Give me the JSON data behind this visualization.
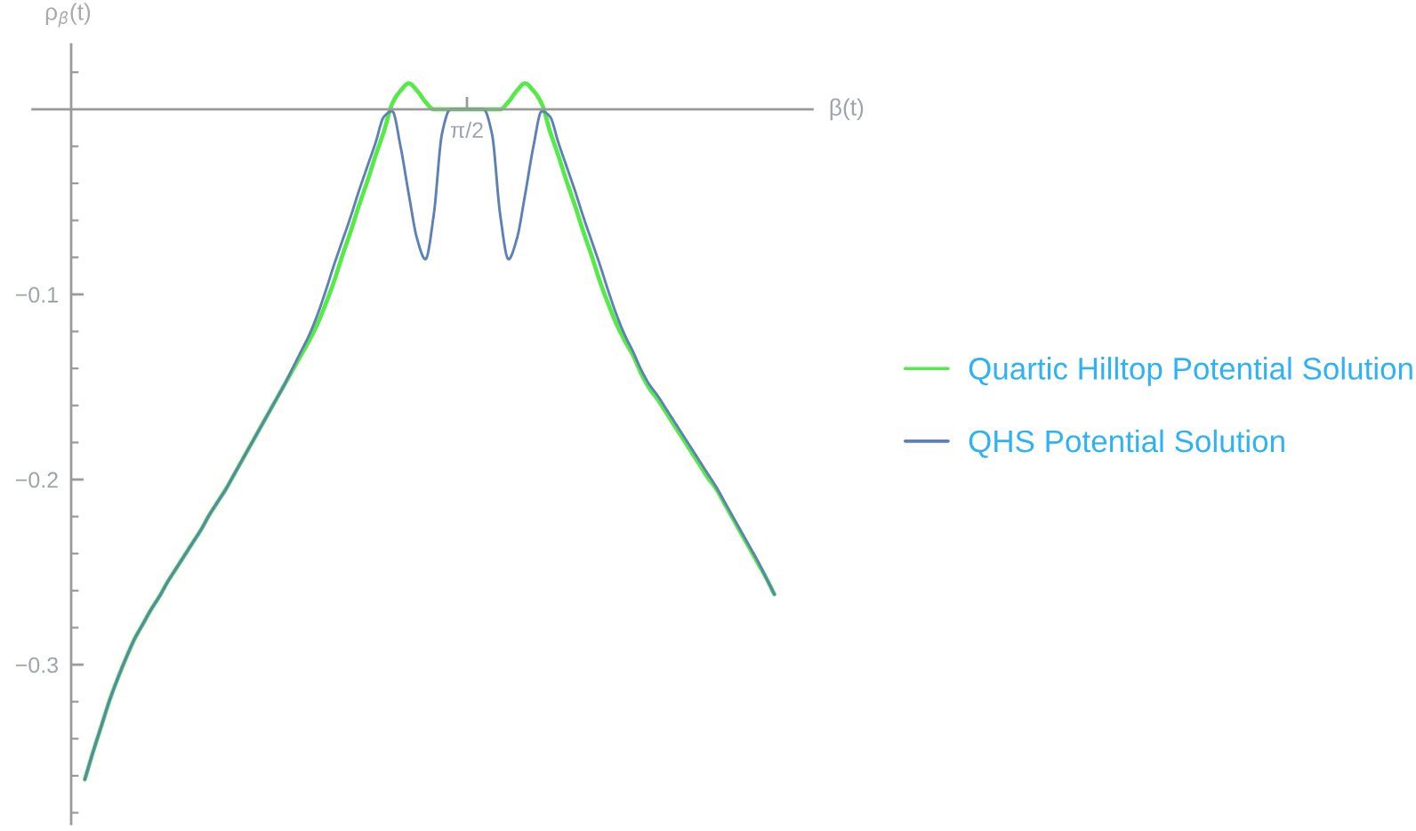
{
  "chart_data": {
    "type": "line",
    "xlabel": "β(t)",
    "ylabel": "ρ$_{β}$(t)",
    "categories": [
      null,
      null,
      null,
      null,
      null,
      null,
      null,
      null,
      null,
      null,
      null,
      null,
      null,
      null,
      null,
      null,
      null,
      null,
      null,
      null,
      null,
      null,
      null,
      null,
      null,
      null,
      null,
      null,
      null,
      null,
      null,
      null,
      null,
      null,
      null,
      null,
      null,
      null,
      null,
      null,
      null,
      null,
      null,
      null,
      null,
      null,
      "π/2",
      null,
      null,
      null,
      null,
      null,
      null,
      null,
      null,
      null,
      null,
      null,
      null,
      null,
      null,
      null,
      null,
      null,
      null,
      null,
      null,
      null,
      null,
      null,
      null,
      null,
      null,
      null,
      null,
      null,
      null,
      null,
      null,
      null,
      null,
      null,
      null,
      null
    ],
    "ylim": [
      -0.386,
      0.035
    ],
    "yticks": [
      {
        "value": 0.02,
        "label": null
      },
      {
        "value": -0.02,
        "label": null
      },
      {
        "value": -0.04,
        "label": null
      },
      {
        "value": -0.06,
        "label": null
      },
      {
        "value": -0.08,
        "label": null
      },
      {
        "value": -0.1,
        "label": "−0.1"
      },
      {
        "value": -0.12,
        "label": null
      },
      {
        "value": -0.14,
        "label": null
      },
      {
        "value": -0.16,
        "label": null
      },
      {
        "value": -0.18,
        "label": null
      },
      {
        "value": -0.2,
        "label": "−0.2"
      },
      {
        "value": -0.22,
        "label": null
      },
      {
        "value": -0.24,
        "label": null
      },
      {
        "value": -0.26,
        "label": null
      },
      {
        "value": -0.28,
        "label": null
      },
      {
        "value": -0.3,
        "label": "−0.3"
      },
      {
        "value": -0.32,
        "label": null
      },
      {
        "value": -0.34,
        "label": null
      },
      {
        "value": -0.36,
        "label": null
      },
      {
        "value": -0.38,
        "label": null
      }
    ],
    "legend": "right",
    "series": [
      {
        "name": "Quartic Hilltop Potential Solution",
        "color": "#55ea48",
        "values": [
          -0.362,
          -0.347,
          -0.333,
          -0.319,
          -0.307,
          -0.296,
          -0.286,
          -0.278,
          -0.27,
          -0.263,
          -0.255,
          -0.248,
          -0.241,
          -0.234,
          -0.227,
          -0.219,
          -0.212,
          -0.205,
          -0.197,
          -0.189,
          -0.181,
          -0.173,
          -0.165,
          -0.157,
          -0.149,
          -0.141,
          -0.133,
          -0.125,
          -0.116,
          -0.105,
          -0.093,
          -0.079,
          -0.066,
          -0.052,
          -0.039,
          -0.025,
          -0.012,
          0.003,
          0.01,
          0.014,
          0.01,
          0.004,
          0,
          0,
          0,
          0,
          0,
          0,
          0,
          0,
          0,
          0.004,
          0.01,
          0.014,
          0.01,
          0.003,
          -0.012,
          -0.025,
          -0.039,
          -0.052,
          -0.066,
          -0.079,
          -0.093,
          -0.105,
          -0.116,
          -0.125,
          -0.133,
          -0.143,
          -0.151,
          -0.157,
          -0.164,
          -0.171,
          -0.178,
          -0.185,
          -0.192,
          -0.199,
          -0.205,
          -0.213,
          -0.221,
          -0.229,
          -0.237,
          -0.245,
          -0.253,
          -0.262
        ]
      },
      {
        "name": "QHS Potential Solution",
        "color": "#5e81b5",
        "values": [
          -0.362,
          -0.347,
          -0.333,
          -0.319,
          -0.307,
          -0.296,
          -0.286,
          -0.278,
          -0.27,
          -0.263,
          -0.255,
          -0.248,
          -0.241,
          -0.234,
          -0.227,
          -0.219,
          -0.212,
          -0.205,
          -0.197,
          -0.189,
          -0.181,
          -0.173,
          -0.165,
          -0.157,
          -0.149,
          -0.14,
          -0.131,
          -0.122,
          -0.111,
          -0.098,
          -0.084,
          -0.071,
          -0.058,
          -0.044,
          -0.031,
          -0.018,
          -0.004,
          -0.001,
          -0.02,
          -0.046,
          -0.07,
          -0.081,
          -0.057,
          -0.013,
          0,
          0,
          0,
          0,
          0,
          -0.013,
          -0.057,
          -0.081,
          -0.07,
          -0.046,
          -0.02,
          -0.001,
          -0.004,
          -0.018,
          -0.031,
          -0.044,
          -0.058,
          -0.071,
          -0.084,
          -0.098,
          -0.111,
          -0.122,
          -0.131,
          -0.141,
          -0.149,
          -0.155,
          -0.162,
          -0.169,
          -0.176,
          -0.183,
          -0.19,
          -0.197,
          -0.204,
          -0.212,
          -0.22,
          -0.228,
          -0.236,
          -0.244,
          -0.253,
          -0.262
        ]
      }
    ]
  }
}
